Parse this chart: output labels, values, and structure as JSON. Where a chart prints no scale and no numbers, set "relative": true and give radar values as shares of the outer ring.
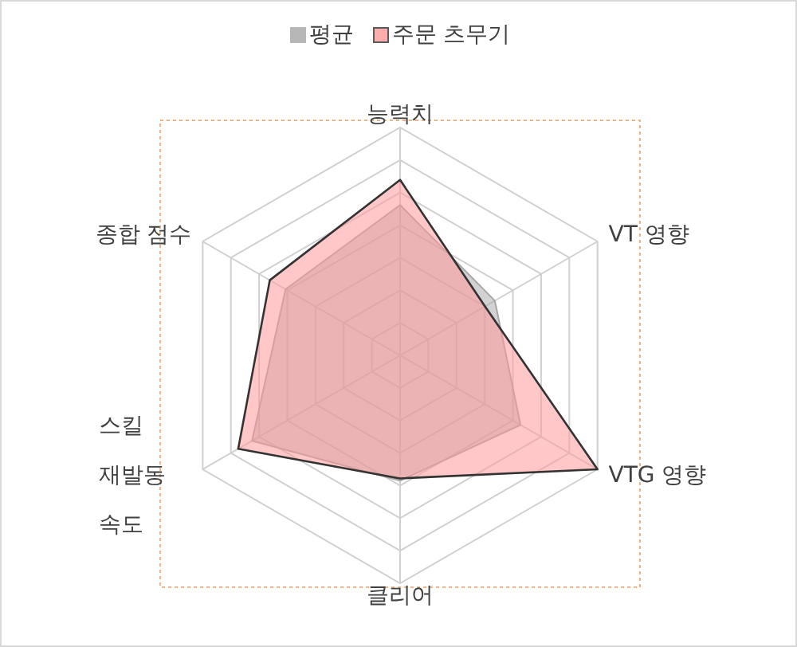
{
  "chart_data": {
    "type": "radar",
    "relative": true,
    "categories": [
      "능력치",
      "VT 영향",
      "VTG 영향",
      "클리어",
      "스킬 재발동 속도",
      "종합 점수"
    ],
    "series": [
      {
        "name": "평균",
        "color": "#a6a6a6",
        "values": [
          0.66,
          0.48,
          0.61,
          0.55,
          0.75,
          0.58
        ]
      },
      {
        "name": "주문 츠무기",
        "color": "#ff9999",
        "values": [
          0.77,
          0.43,
          1.0,
          0.54,
          0.82,
          0.66
        ]
      }
    ],
    "grid": true,
    "legend": "top"
  }
}
